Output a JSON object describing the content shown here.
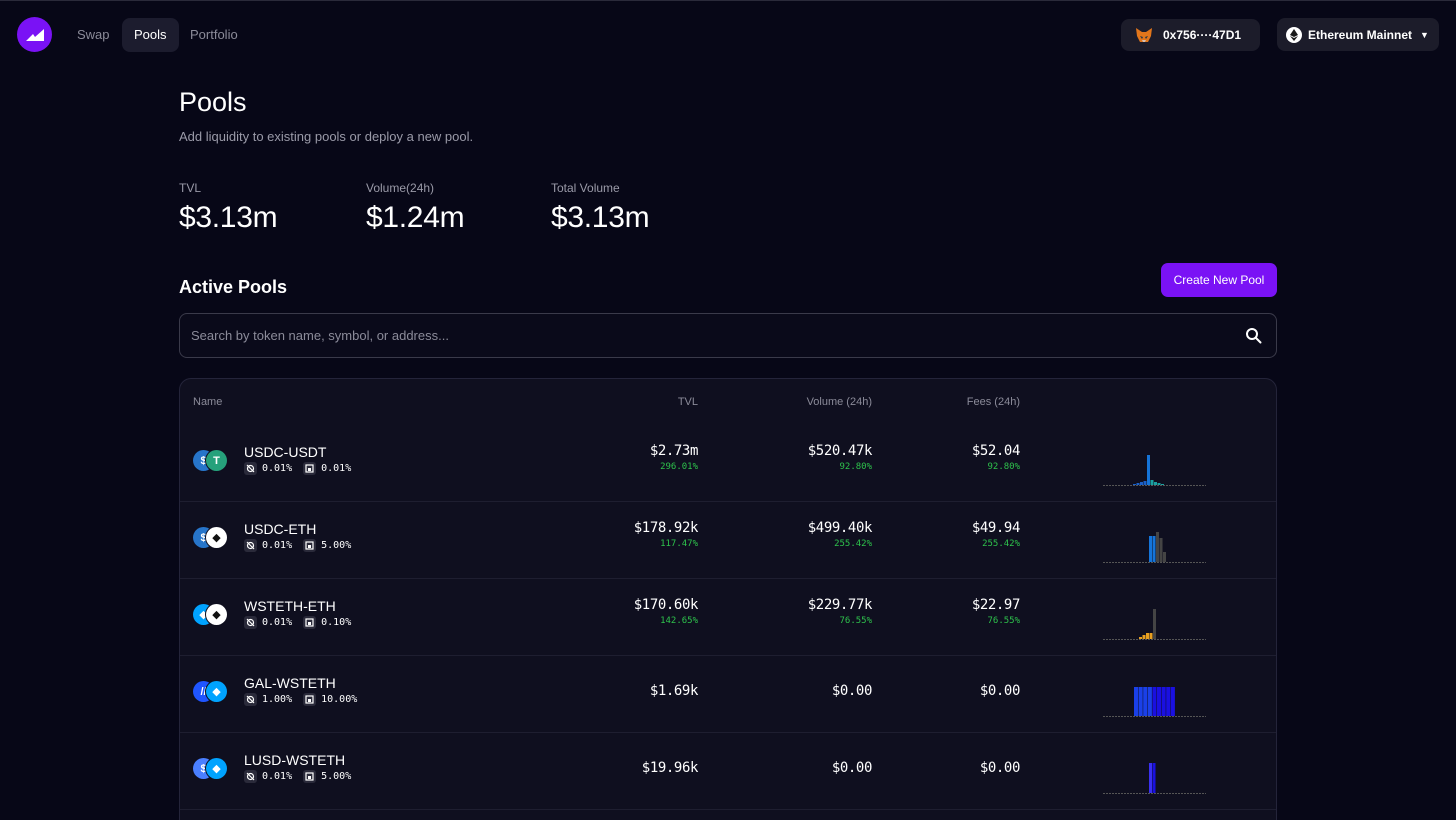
{
  "nav": {
    "links": [
      "Swap",
      "Pools",
      "Portfolio"
    ],
    "active": "Pools",
    "wallet_address": "0x756····47D1",
    "network": "Ethereum Mainnet"
  },
  "header": {
    "title": "Pools",
    "subtitle": "Add liquidity to existing pools or deploy a new pool."
  },
  "stats": [
    {
      "label": "TVL",
      "value": "$3.13m"
    },
    {
      "label": "Volume(24h)",
      "value": "$1.24m"
    },
    {
      "label": "Total Volume",
      "value": "$3.13m"
    }
  ],
  "active_pools": {
    "title": "Active Pools",
    "create_button": "Create New Pool",
    "search_placeholder": "Search by token name, symbol, or address..."
  },
  "table": {
    "columns": [
      "Name",
      "TVL",
      "Volume (24h)",
      "Fees (24h)"
    ],
    "rows": [
      {
        "name": "USDC-USDT",
        "fee1": "0.01%",
        "fee2": "0.01%",
        "tvl": "$2.73m",
        "tvl_change": "296.01%",
        "volume": "$520.47k",
        "volume_change": "92.80%",
        "fees": "$52.04",
        "fees_change": "92.80%"
      },
      {
        "name": "USDC-ETH",
        "fee1": "0.01%",
        "fee2": "5.00%",
        "tvl": "$178.92k",
        "tvl_change": "117.47%",
        "volume": "$499.40k",
        "volume_change": "255.42%",
        "fees": "$49.94",
        "fees_change": "255.42%"
      },
      {
        "name": "WSTETH-ETH",
        "fee1": "0.01%",
        "fee2": "0.10%",
        "tvl": "$170.60k",
        "tvl_change": "142.65%",
        "volume": "$229.77k",
        "volume_change": "76.55%",
        "fees": "$22.97",
        "fees_change": "76.55%"
      },
      {
        "name": "GAL-WSTETH",
        "fee1": "1.00%",
        "fee2": "10.00%",
        "tvl": "$1.69k",
        "tvl_change": "",
        "volume": "$0.00",
        "volume_change": "",
        "fees": "$0.00",
        "fees_change": ""
      },
      {
        "name": "LUSD-WSTETH",
        "fee1": "0.01%",
        "fee2": "5.00%",
        "tvl": "$19.96k",
        "tvl_change": "",
        "volume": "$0.00",
        "volume_change": "",
        "fees": "$0.00",
        "fees_change": ""
      }
    ]
  },
  "colors": {
    "accent": "#7a12f5",
    "positive": "#2ec24c",
    "background": "#070717"
  }
}
